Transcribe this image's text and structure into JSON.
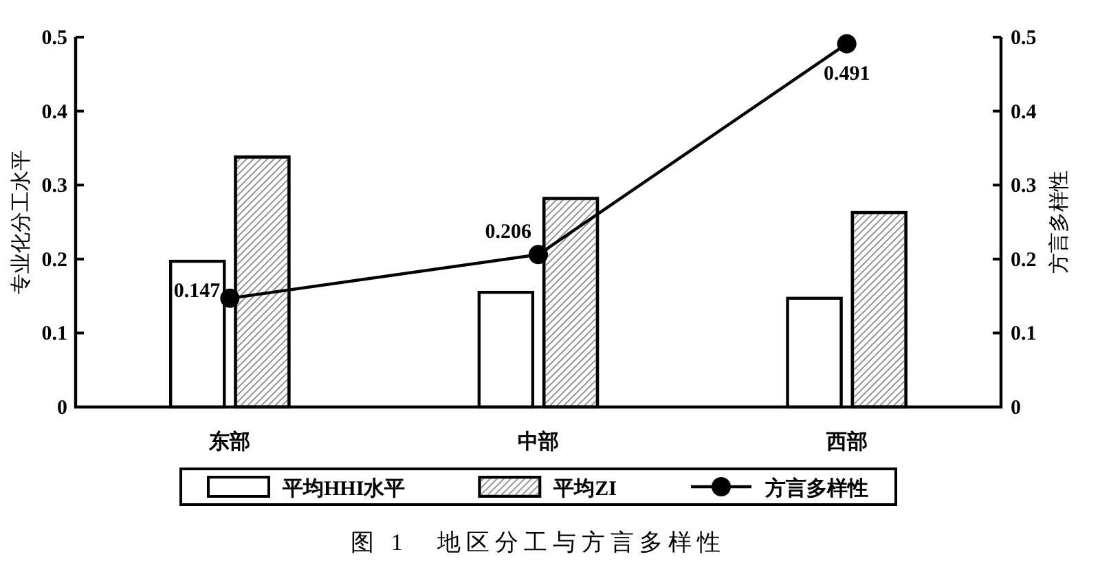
{
  "chart_data": {
    "type": "bar",
    "title": "图 1　地区分工与方言多样性",
    "ylabel": "专业化分工水平",
    "y2label": "方言多样性",
    "categories": [
      "东部",
      "中部",
      "西部"
    ],
    "series": [
      {
        "name": "平均HHI水平",
        "color": "#ffffff",
        "values": [
          0.197,
          0.155,
          0.147
        ]
      },
      {
        "name": "平均ZI",
        "color": "#8a8a8a",
        "values": [
          0.338,
          0.282,
          0.263
        ]
      },
      {
        "name": "方言多样性",
        "type": "line",
        "axis": "y2",
        "color": "#000000",
        "values": [
          0.147,
          0.206,
          0.491
        ],
        "value_labels": [
          "0.147",
          "0.206",
          "0.491"
        ]
      }
    ],
    "ylim": [
      0,
      0.5
    ],
    "yticks": [
      0,
      0.1,
      0.2,
      0.3,
      0.4,
      0.5
    ],
    "y2lim": [
      0,
      0.5
    ],
    "y2ticks": [
      0,
      0.1,
      0.2,
      0.3,
      0.4,
      0.5
    ],
    "marker": "circle",
    "legend": "bottom"
  }
}
